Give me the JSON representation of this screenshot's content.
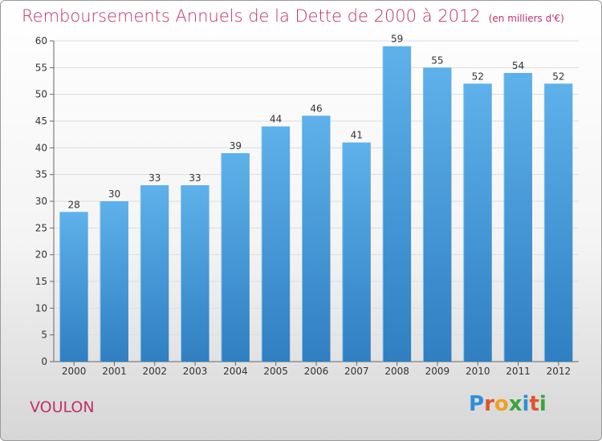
{
  "title": "Remboursements Annuels de la Dette de 2000 à 2012",
  "subtitle": "(en milliers d'€)",
  "commune": "VOULON",
  "logo": {
    "text": "Proxiti",
    "letter_colors": [
      "#2e8fd6",
      "#e2542a",
      "#f0a020",
      "#3aa63a",
      "#2e8fd6",
      "#e2542a",
      "#3aa63a"
    ]
  },
  "colors": {
    "accent": "#c0306a",
    "bar_top": "#5eb1ea",
    "bar_bottom": "#2f7fc2"
  },
  "chart_data": {
    "type": "bar",
    "categories": [
      "2000",
      "2001",
      "2002",
      "2003",
      "2004",
      "2005",
      "2006",
      "2007",
      "2008",
      "2009",
      "2010",
      "2011",
      "2012"
    ],
    "values": [
      28,
      30,
      33,
      33,
      39,
      44,
      46,
      41,
      59,
      55,
      52,
      54,
      52
    ],
    "yticks": [
      0,
      5,
      10,
      15,
      20,
      25,
      30,
      35,
      40,
      45,
      50,
      55,
      60
    ],
    "ylim": [
      0,
      60
    ],
    "grid": true,
    "legend": "none"
  }
}
